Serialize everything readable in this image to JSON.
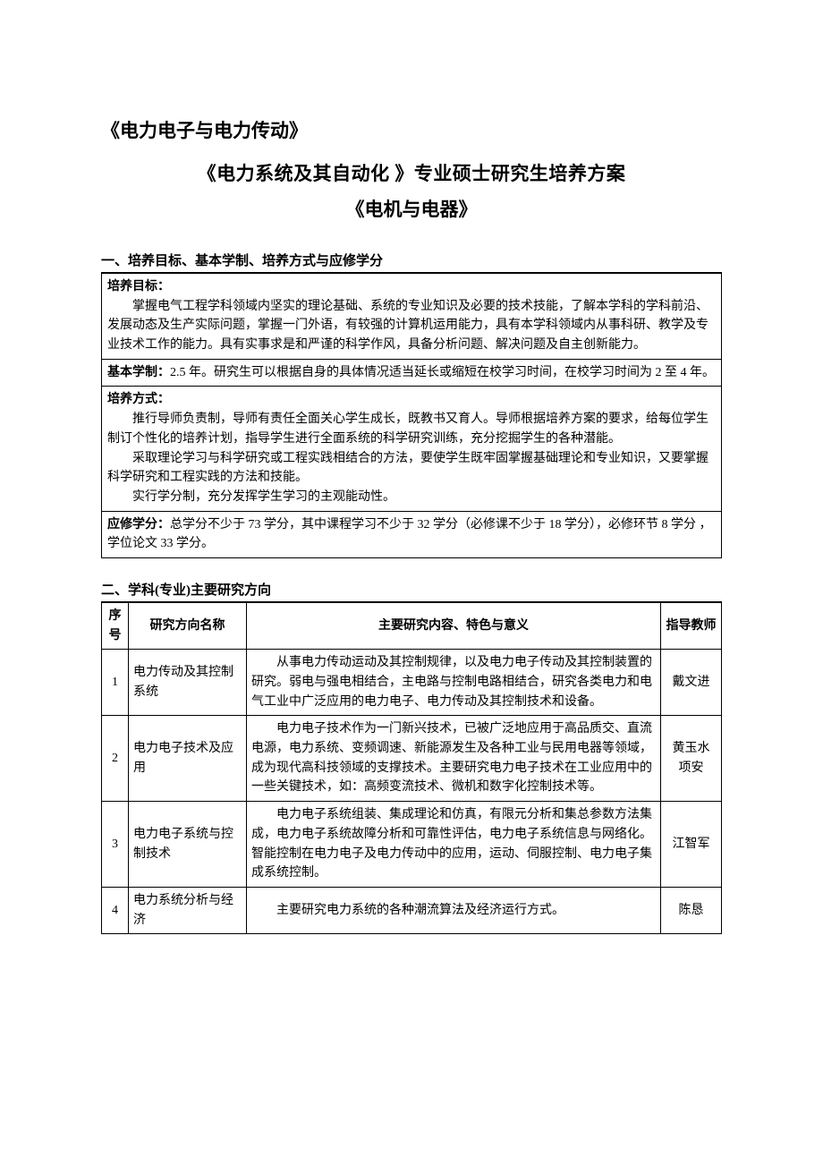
{
  "title": {
    "line1": "《电力电子与电力传动》",
    "line2": "《电力系统及其自动化 》专业硕士研究生培养方案",
    "line3": "《电机与电器》"
  },
  "section1": {
    "heading": "一、培养目标、基本学制、培养方式与应修学分",
    "goals_label": "培养目标：",
    "goals_text": "掌握电气工程学科领域内坚实的理论基础、系统的专业知识及必要的技术技能，了解本学科的学科前沿、发展动态及生产实际问题，掌握一门外语，有较强的计算机运用能力，具有本学科领域内从事科研、教学及专业技术工作的能力。具有实事求是和严谨的科学作风，具备分析问题、解决问题及自主创新能力。",
    "duration_label": "基本学制：",
    "duration_text": "2.5 年。研究生可以根据自身的具体情况适当延长或缩短在校学习时间，在校学习时间为 2 至 4 年。",
    "method_label": "培养方式：",
    "method_p1": "推行导师负责制，导师有责任全面关心学生成长，既教书又育人。导师根据培养方案的要求，给每位学生制订个性化的培养计划，指导学生进行全面系统的科学研究训练，充分挖掘学生的各种潜能。",
    "method_p2": "采取理论学习与科学研究或工程实践相结合的方法，要使学生既牢固掌握基础理论和专业知识，又要掌握科学研究和工程实践的方法和技能。",
    "method_p3": "实行学分制，充分发挥学生学习的主观能动性。",
    "credits_label": "应修学分：",
    "credits_text": "总学分不少于 73 学分，其中课程学习不少于 32 学分（必修课不少于 18 学分），必修环节 8 学分 ，学位论文 33 学分。"
  },
  "section2": {
    "heading": "二、学科(专业)主要研究方向",
    "headers": {
      "num": "序号",
      "name": "研究方向名称",
      "content": "主要研究内容、特色与意义",
      "teacher": "指导教师"
    },
    "rows": [
      {
        "num": "1",
        "name": "电力传动及其控制系统",
        "content": "从事电力传动运动及其控制规律，以及电力电子传动及其控制装置的研究。弱电与强电相结合，主电路与控制电路相结合，研究各类电力和电气工业中广泛应用的电力电子、电力传动及其控制技术和设备。",
        "teacher": "戴文进"
      },
      {
        "num": "2",
        "name": "电力电子技术及应用",
        "content": "电力电子技术作为一门新兴技术，已被广泛地应用于高品质交、直流电源，电力系统、变频调速、新能源发生及各种工业与民用电器等领域，成为现代高科技领域的支撑技术。主要研究电力电子技术在工业应用中的一些关键技术，如：高频变流技术、微机和数字化控制技术等。",
        "teacher": "黄玉水\n项安"
      },
      {
        "num": "3",
        "name": "电力电子系统与控制技术",
        "content": "电力电子系统组装、集成理论和仿真，有限元分析和集总参数方法集成，电力电子系统故障分析和可靠性评估，电力电子系统信息与网络化。智能控制在电力电子及电力传动中的应用，运动、伺服控制、电力电子集成系统控制。",
        "teacher": "江智军"
      },
      {
        "num": "4",
        "name": "电力系统分析与经济",
        "content": "主要研究电力系统的各种潮流算法及经济运行方式。",
        "teacher": "陈恳"
      }
    ]
  }
}
